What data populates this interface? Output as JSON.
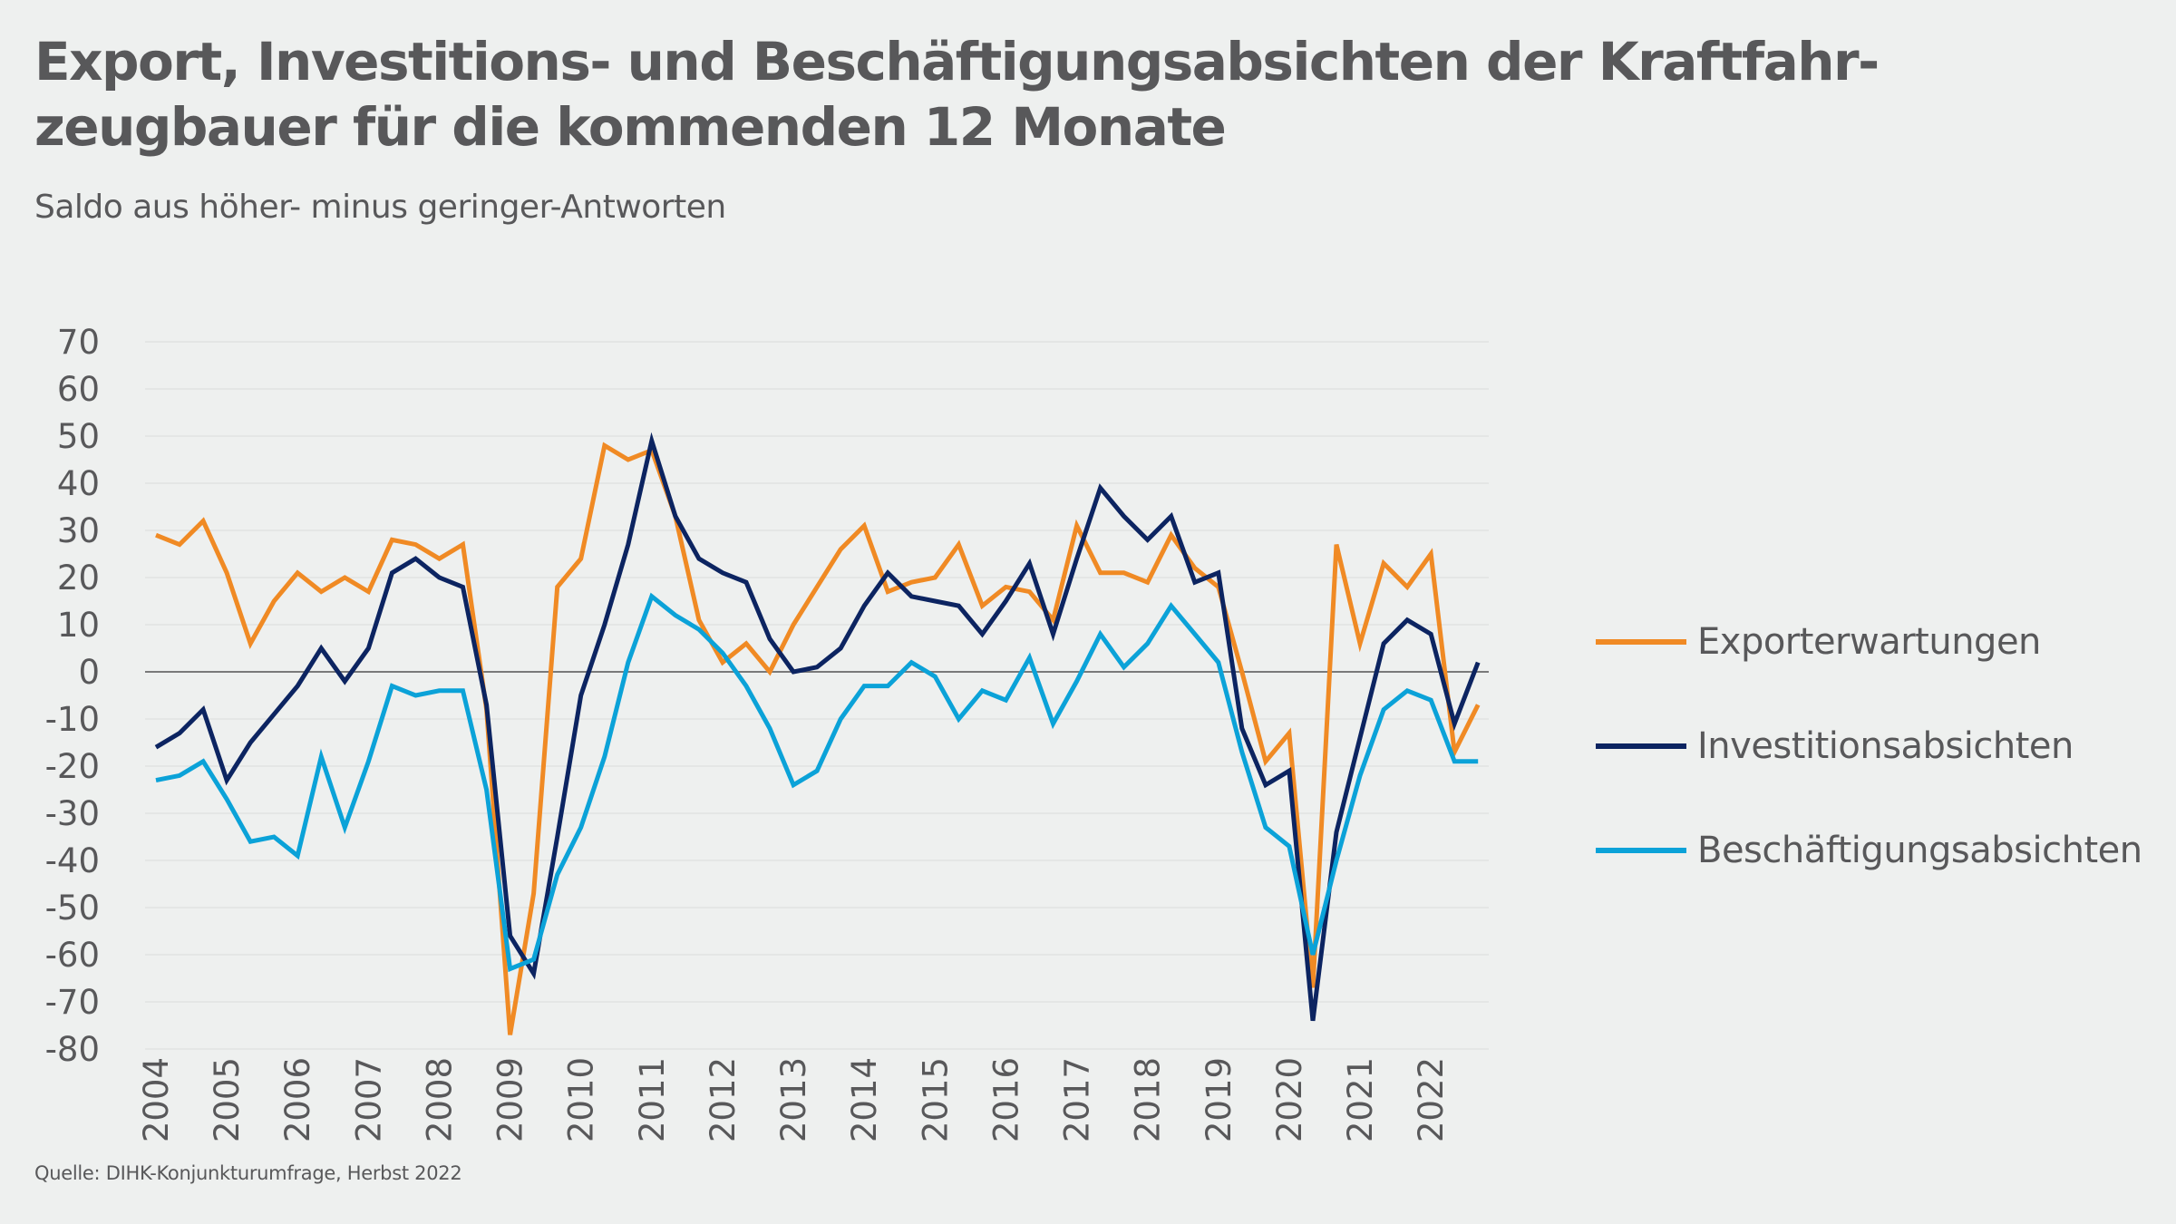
{
  "header": {
    "title": "Export, Investitions- und Beschäftigungsabsichten der Kraftfahr-zeugbauer für die kommenden 12 Monate",
    "subtitle": "Saldo aus höher- minus geringer-Antworten"
  },
  "footer": {
    "source": "Quelle: DIHK-Konjunkturumfrage, Herbst 2022"
  },
  "chart_data": {
    "type": "line",
    "title": "Export, Investitions- und Beschäftigungsabsichten der Kraftfahr-zeugbauer für die kommenden 12 Monate",
    "subtitle": "Saldo aus höher- minus geringer-Antworten",
    "xlabel": "",
    "ylabel": "",
    "ylim": [
      -80,
      70
    ],
    "yticks": [
      "70",
      "60",
      "50",
      "40",
      "30",
      "20",
      "10",
      "0",
      "-10",
      "-20",
      "-30",
      "-40",
      "-50",
      "-60",
      "-70",
      "-80"
    ],
    "ytick_values": [
      70,
      60,
      50,
      40,
      30,
      20,
      10,
      0,
      -10,
      -20,
      -30,
      -40,
      -50,
      -60,
      -70,
      -80
    ],
    "x_note": "3 survey points per year, 2004 to autumn 2022",
    "points_per_year": 3,
    "xticks": [
      "2004",
      "2005",
      "2006",
      "2007",
      "2008",
      "2009",
      "2010",
      "2011",
      "2012",
      "2013",
      "2014",
      "2015",
      "2016",
      "2017",
      "2018",
      "2019",
      "2020",
      "2021",
      "2022"
    ],
    "grid": true,
    "zero_line": true,
    "legend_position": "right",
    "series": [
      {
        "name": "Exporterwartungen",
        "color": "#f08a24",
        "values": [
          29,
          27,
          32,
          21,
          6,
          15,
          21,
          17,
          20,
          17,
          28,
          27,
          24,
          27,
          -8,
          -77,
          -47,
          18,
          24,
          48,
          45,
          47,
          33,
          11,
          2,
          6,
          0,
          10,
          18,
          26,
          31,
          17,
          19,
          20,
          27,
          14,
          18,
          17,
          11,
          31,
          21,
          21,
          19,
          29,
          22,
          18,
          0,
          -19,
          -13,
          -67,
          27,
          6,
          23,
          18,
          25,
          -17,
          -7
        ]
      },
      {
        "name": "Investitionsabsichten",
        "color": "#0c2461",
        "values": [
          -16,
          -13,
          -8,
          -23,
          -15,
          -9,
          -3,
          5,
          -2,
          5,
          21,
          24,
          20,
          18,
          -7,
          -56,
          -64,
          -35,
          -5,
          10,
          27,
          49,
          33,
          24,
          21,
          19,
          7,
          0,
          1,
          5,
          14,
          21,
          16,
          15,
          14,
          8,
          15,
          23,
          8,
          24,
          39,
          33,
          28,
          33,
          19,
          21,
          -12,
          -24,
          -21,
          -74,
          -34,
          -14,
          6,
          11,
          8,
          -11,
          2
        ]
      },
      {
        "name": "Beschäftigungsabsichten",
        "color": "#0ba2d8",
        "values": [
          -23,
          -22,
          -19,
          -27,
          -36,
          -35,
          -39,
          -18,
          -33,
          -19,
          -3,
          -5,
          -4,
          -4,
          -25,
          -63,
          -61,
          -43,
          -33,
          -18,
          2,
          16,
          12,
          9,
          4,
          -3,
          -12,
          -24,
          -21,
          -10,
          -3,
          -3,
          2,
          -1,
          -10,
          -4,
          -6,
          3,
          -11,
          -2,
          8,
          1,
          6,
          14,
          8,
          2,
          -17,
          -33,
          -37,
          -60,
          -40,
          -22,
          -8,
          -4,
          -6,
          -19,
          -19
        ]
      }
    ]
  }
}
